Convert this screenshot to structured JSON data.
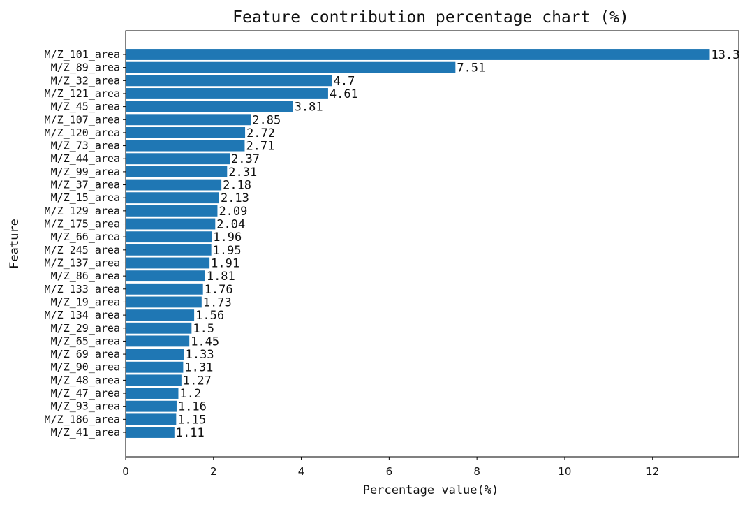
{
  "chart_data": {
    "type": "bar",
    "orientation": "horizontal",
    "title": "Feature contribution percentage chart (%)",
    "xlabel": "Percentage value(%)",
    "ylabel": "Feature",
    "xlim": [
      0,
      13.96
    ],
    "xticks": [
      0,
      2,
      4,
      6,
      8,
      10,
      12
    ],
    "bar_color": "#1f77b4",
    "grid": false,
    "categories": [
      "M/Z_101_area",
      "M/Z_89_area",
      "M/Z_32_area",
      "M/Z_121_area",
      "M/Z_45_area",
      "M/Z_107_area",
      "M/Z_120_area",
      "M/Z_73_area",
      "M/Z_44_area",
      "M/Z_99_area",
      "M/Z_37_area",
      "M/Z_15_area",
      "M/Z_129_area",
      "M/Z_175_area",
      "M/Z_66_area",
      "M/Z_245_area",
      "M/Z_137_area",
      "M/Z_86_area",
      "M/Z_133_area",
      "M/Z_19_area",
      "M/Z_134_area",
      "M/Z_29_area",
      "M/Z_65_area",
      "M/Z_69_area",
      "M/Z_90_area",
      "M/Z_48_area",
      "M/Z_47_area",
      "M/Z_93_area",
      "M/Z_186_area",
      "M/Z_41_area"
    ],
    "values": [
      13.3,
      7.51,
      4.7,
      4.61,
      3.81,
      2.85,
      2.72,
      2.71,
      2.37,
      2.31,
      2.18,
      2.13,
      2.09,
      2.04,
      1.96,
      1.95,
      1.91,
      1.81,
      1.76,
      1.73,
      1.56,
      1.5,
      1.45,
      1.33,
      1.31,
      1.27,
      1.2,
      1.16,
      1.15,
      1.11
    ],
    "value_labels": [
      "13.3",
      "7.51",
      "4.7",
      "4.61",
      "3.81",
      "2.85",
      "2.72",
      "2.71",
      "2.37",
      "2.31",
      "2.18",
      "2.13",
      "2.09",
      "2.04",
      "1.96",
      "1.95",
      "1.91",
      "1.81",
      "1.76",
      "1.73",
      "1.56",
      "1.5",
      "1.45",
      "1.33",
      "1.31",
      "1.27",
      "1.2",
      "1.16",
      "1.15",
      "1.11"
    ]
  }
}
